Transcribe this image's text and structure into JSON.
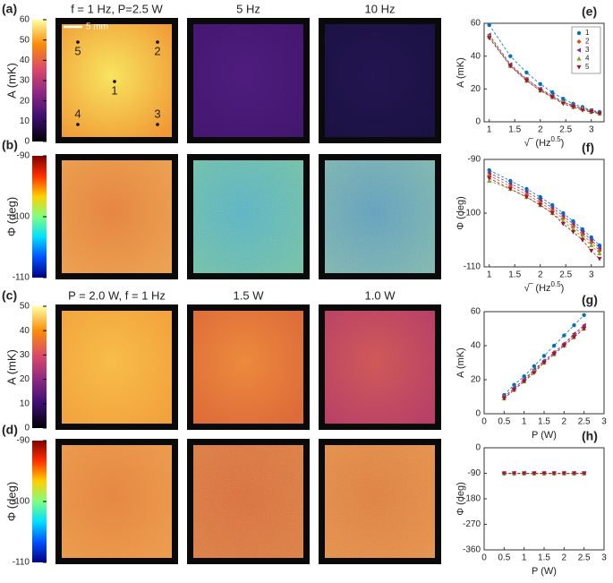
{
  "rows": [
    {
      "label": "(a)",
      "colorbar_label": "A (mK)",
      "colormap": "inferno",
      "clim": [
        0,
        60
      ],
      "cticks": [
        0,
        10,
        20,
        30,
        40,
        50,
        60
      ],
      "titles": [
        "f = 1 Hz, P=2.5 W",
        "5 Hz",
        "10 Hz"
      ],
      "panel_colors": [
        [
          "#f8e45e",
          "#f09a36"
        ],
        [
          "#4e1d7e",
          "#44176f"
        ],
        [
          "#231550",
          "#1b1244"
        ]
      ]
    },
    {
      "label": "(b)",
      "colorbar_label": "Φ (deg)",
      "colormap": "jet",
      "clim": [
        -110,
        -90
      ],
      "cticks": [
        -110,
        -100,
        -90
      ],
      "panel_colors": [
        [
          "#e9823a",
          "#f0a048"
        ],
        [
          "#52b6c8",
          "#6cc4a8"
        ],
        [
          "#5aa0c0",
          "#7ab8b0"
        ]
      ]
    },
    {
      "label": "(c)",
      "colorbar_label": "A (mK)",
      "colormap": "inferno",
      "clim": [
        0,
        50
      ],
      "cticks": [
        0,
        10,
        20,
        30,
        40,
        50
      ],
      "titles": [
        "P = 2.0 W, f = 1 Hz",
        "1.5 W",
        "1.0 W"
      ],
      "panel_colors": [
        [
          "#f7bd4a",
          "#f2a23c"
        ],
        [
          "#ec8a3c",
          "#dc6a3a"
        ],
        [
          "#cf5a58",
          "#b84068"
        ]
      ]
    },
    {
      "label": "(d)",
      "colorbar_label": "Φ (deg)",
      "colormap": "jet",
      "clim": [
        -110,
        -90
      ],
      "cticks": [
        -110,
        -100,
        -90
      ],
      "panel_colors": [
        [
          "#e9843a",
          "#f09a45"
        ],
        [
          "#e06a30",
          "#e27a38"
        ],
        [
          "#e57c34",
          "#ec8e3e"
        ]
      ]
    }
  ],
  "scale_bar": "5 mm",
  "point_labels": [
    "1",
    "2",
    "3",
    "4",
    "5"
  ],
  "chart_data": [
    {
      "type": "line",
      "label": "(e)",
      "xlabel": [
        "√‾ (Hz",
        "0.5",
        ")"
      ],
      "ylabel": "A (mK)",
      "x": [
        1,
        1.414,
        1.732,
        2,
        2.236,
        2.449,
        2.646,
        2.828,
        3,
        3.162
      ],
      "xlim": [
        0.9,
        3.25
      ],
      "xticks": [
        1,
        1.5,
        2,
        2.5,
        3
      ],
      "ylim": [
        0,
        60
      ],
      "yticks": [
        0,
        20,
        40,
        60
      ],
      "legend": "upper right",
      "series": [
        {
          "name": "1",
          "color": "#0072bd",
          "marker": "o",
          "values": [
            59,
            40,
            30,
            23,
            18,
            14,
            11,
            9,
            7,
            6
          ]
        },
        {
          "name": "2",
          "color": "#d95319",
          "marker": "d",
          "values": [
            52,
            34,
            26,
            20,
            15,
            12,
            10,
            8,
            6,
            5
          ]
        },
        {
          "name": "3",
          "color": "#7e2f8e",
          "marker": "<",
          "values": [
            53,
            35,
            26,
            20,
            16,
            12,
            10,
            8,
            7,
            5
          ]
        },
        {
          "name": "4",
          "color": "#77ac30",
          "marker": "^",
          "values": [
            52,
            34,
            25,
            19,
            15,
            12,
            9,
            8,
            6,
            5
          ]
        },
        {
          "name": "5",
          "color": "#a2142f",
          "marker": "v",
          "values": [
            51,
            34,
            25,
            19,
            15,
            11,
            9,
            7,
            6,
            5
          ]
        }
      ]
    },
    {
      "type": "line",
      "label": "(f)",
      "xlabel": [
        "√‾ (Hz",
        "0.5",
        ")"
      ],
      "ylabel": "Φ (deg)",
      "x": [
        1,
        1.414,
        1.732,
        2,
        2.236,
        2.449,
        2.646,
        2.828,
        3,
        3.162
      ],
      "xlim": [
        0.9,
        3.25
      ],
      "xticks": [
        1,
        1.5,
        2,
        2.5,
        3
      ],
      "ylim": [
        -110,
        -90
      ],
      "yticks": [
        -110,
        -100,
        -90
      ],
      "series": [
        {
          "color": "#0072bd",
          "marker": "o",
          "values": [
            -92,
            -94,
            -95.5,
            -97,
            -98.5,
            -100,
            -101.5,
            -103,
            -104.5,
            -106
          ]
        },
        {
          "color": "#d95319",
          "marker": "d",
          "values": [
            -93,
            -95,
            -96.5,
            -98,
            -99.5,
            -101,
            -102.5,
            -104,
            -105.5,
            -107
          ]
        },
        {
          "color": "#7e2f8e",
          "marker": "<",
          "values": [
            -92.5,
            -94.5,
            -96,
            -97.5,
            -99,
            -100.5,
            -102,
            -103.5,
            -105,
            -106.5
          ]
        },
        {
          "color": "#77ac30",
          "marker": "^",
          "values": [
            -94,
            -95.5,
            -97,
            -98.5,
            -100,
            -101.5,
            -103,
            -104.5,
            -106,
            -107.5
          ]
        },
        {
          "color": "#a2142f",
          "marker": "v",
          "values": [
            -93.5,
            -95.5,
            -97,
            -98.5,
            -100,
            -102,
            -103.5,
            -105,
            -107,
            -108.5
          ]
        }
      ]
    },
    {
      "type": "line",
      "label": "(g)",
      "xlabel": [
        "P (W)"
      ],
      "ylabel": "A (mK)",
      "x": [
        0.5,
        0.75,
        1,
        1.25,
        1.5,
        1.75,
        2,
        2.25,
        2.5
      ],
      "xlim": [
        0,
        3
      ],
      "xticks": [
        0,
        0.5,
        1,
        1.5,
        2,
        2.5,
        3
      ],
      "ylim": [
        0,
        60
      ],
      "yticks": [
        0,
        20,
        40,
        60
      ],
      "series": [
        {
          "color": "#0072bd",
          "marker": "o",
          "values": [
            11,
            17,
            22,
            28,
            34,
            40,
            46,
            52,
            58
          ]
        },
        {
          "color": "#d95319",
          "marker": "d",
          "values": [
            10,
            15,
            20,
            25,
            31,
            36,
            41,
            46,
            51
          ]
        },
        {
          "color": "#7e2f8e",
          "marker": "<",
          "values": [
            10,
            15,
            20,
            26,
            31,
            36,
            41,
            47,
            52
          ]
        },
        {
          "color": "#77ac30",
          "marker": "^",
          "values": [
            9,
            14,
            19,
            25,
            30,
            35,
            40,
            45,
            50
          ]
        },
        {
          "color": "#a2142f",
          "marker": "v",
          "values": [
            9,
            14,
            19,
            24,
            30,
            35,
            40,
            45,
            50
          ]
        }
      ]
    },
    {
      "type": "line",
      "label": "(h)",
      "xlabel": [
        "P (W)"
      ],
      "ylabel": "Φ (deg)",
      "x": [
        0.5,
        0.75,
        1,
        1.25,
        1.5,
        1.75,
        2,
        2.25,
        2.5
      ],
      "xlim": [
        0,
        3
      ],
      "xticks": [
        0,
        0.5,
        1,
        1.5,
        2,
        2.5,
        3
      ],
      "ylim": [
        -360,
        0
      ],
      "yticks": [
        -360,
        -270,
        -180,
        -90,
        0
      ],
      "series": [
        {
          "color": "#0072bd",
          "marker": "o",
          "values": [
            -90,
            -90,
            -90,
            -90,
            -90,
            -90,
            -90,
            -90,
            -90
          ]
        },
        {
          "color": "#d95319",
          "marker": "d",
          "values": [
            -91,
            -91,
            -91,
            -91,
            -91,
            -91,
            -91,
            -91,
            -91
          ]
        },
        {
          "color": "#7e2f8e",
          "marker": "<",
          "values": [
            -90,
            -90,
            -90,
            -90,
            -90,
            -90,
            -90,
            -90,
            -90
          ]
        },
        {
          "color": "#77ac30",
          "marker": "^",
          "values": [
            -91,
            -91,
            -91,
            -91,
            -91,
            -91,
            -91,
            -91,
            -91
          ]
        },
        {
          "color": "#a2142f",
          "marker": "v",
          "values": [
            -90,
            -90,
            -90,
            -90,
            -90,
            -90,
            -90,
            -90,
            -90
          ]
        }
      ]
    }
  ]
}
